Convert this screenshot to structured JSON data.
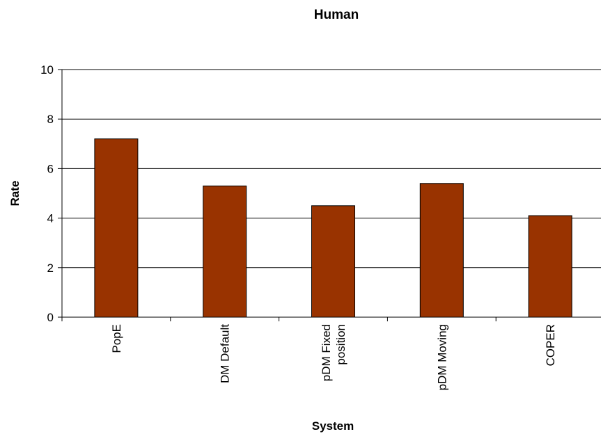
{
  "chart_data": {
    "type": "bar",
    "title": "Human",
    "xlabel": "System",
    "ylabel": "Rate",
    "categories": [
      [
        "PopE"
      ],
      [
        "DM Default"
      ],
      [
        "pDM Fixed",
        "position"
      ],
      [
        "pDM Moving"
      ],
      [
        "COPER"
      ]
    ],
    "values": [
      7.2,
      5.3,
      4.5,
      5.4,
      4.1
    ],
    "ylim": [
      0,
      10
    ],
    "yticks": [
      "0",
      "2",
      "4",
      "6",
      "8",
      "10"
    ],
    "grid": true,
    "legend": "none",
    "bar_color": "#993300"
  }
}
